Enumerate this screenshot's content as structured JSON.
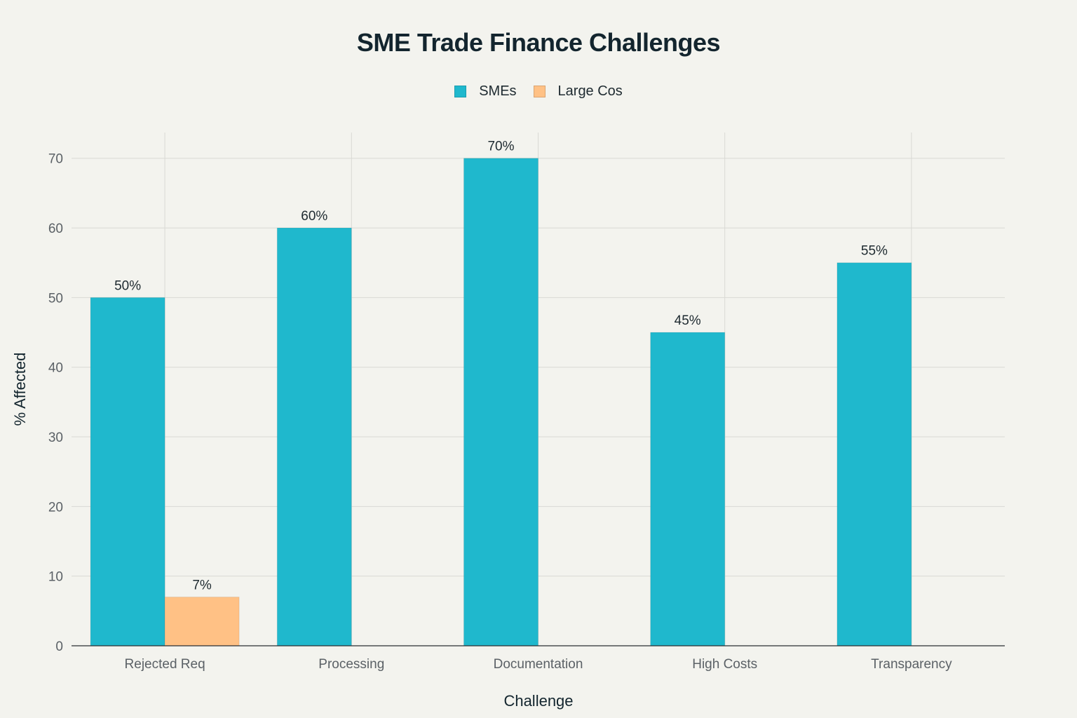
{
  "chart_data": {
    "type": "bar",
    "title": "SME Trade Finance Challenges",
    "xlabel": "Challenge",
    "ylabel": "% Affected",
    "categories": [
      "Rejected Req",
      "Processing",
      "Documentation",
      "High Costs",
      "Transparency"
    ],
    "series": [
      {
        "name": "SMEs",
        "color": "#1fb8cd",
        "values": [
          50,
          60,
          70,
          45,
          55
        ],
        "labels": [
          "50%",
          "60%",
          "70%",
          "45%",
          "55%"
        ]
      },
      {
        "name": "Large Cos",
        "color": "#ffc185",
        "values": [
          7,
          null,
          null,
          null,
          null
        ],
        "labels": [
          "7%",
          null,
          null,
          null,
          null
        ]
      }
    ],
    "yticks": [
      0,
      10,
      20,
      30,
      40,
      50,
      60,
      70
    ],
    "ylim": [
      0,
      73.7
    ],
    "grid": true,
    "legend": "top-center"
  }
}
